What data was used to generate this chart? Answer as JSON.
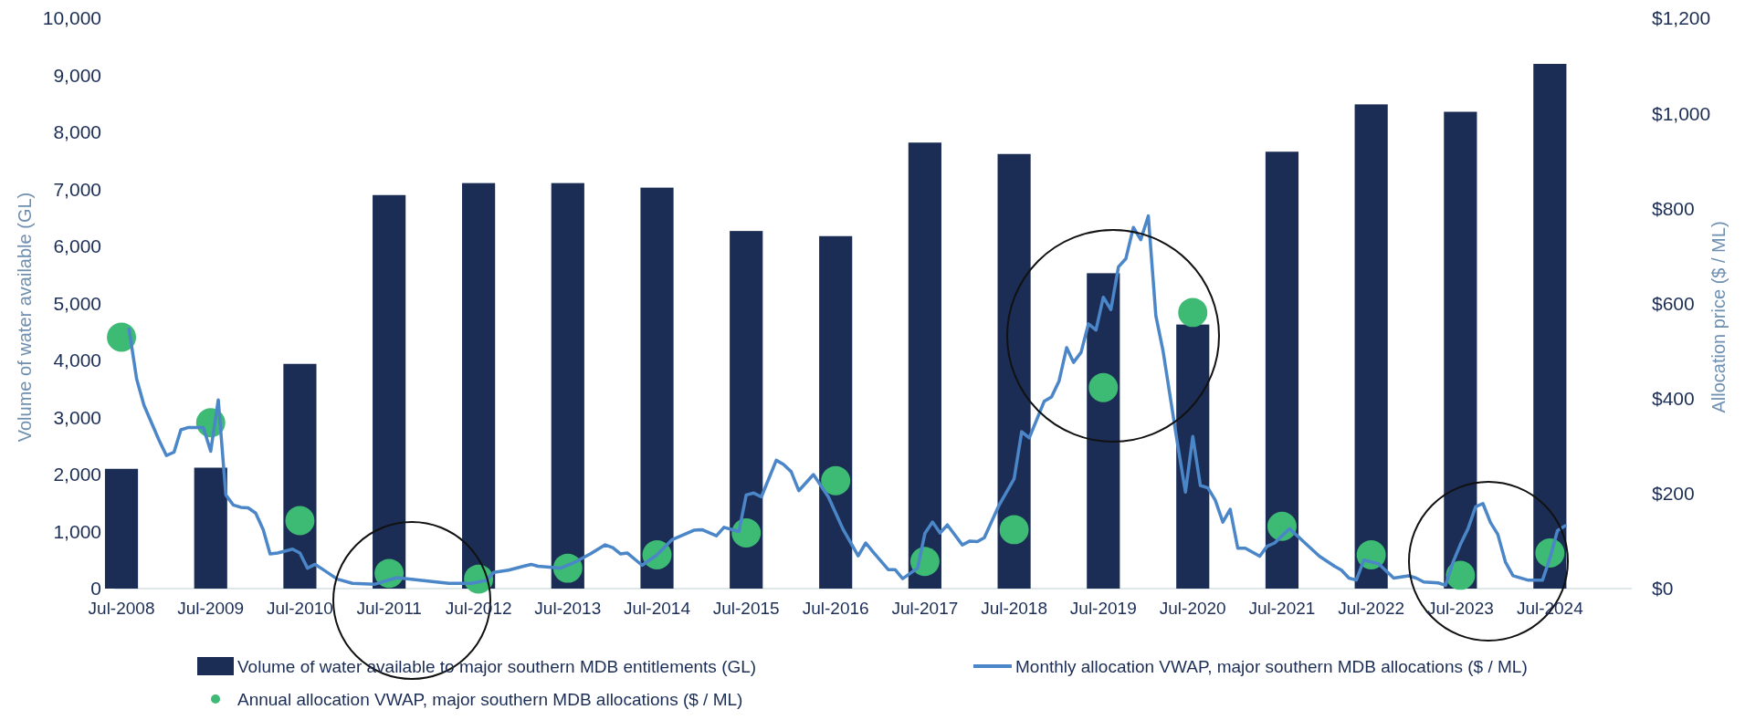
{
  "chart_data": {
    "type": "bar",
    "ylabel": "Volume of water available (GL)",
    "y2label": "Allocation price ($ / ML)",
    "xlim": [
      "2008-06",
      "2025-06"
    ],
    "xticks": [
      {
        "value": "2008-07",
        "label": "Jul-2008"
      },
      {
        "value": "2009-07",
        "label": "Jul-2009"
      },
      {
        "value": "2010-07",
        "label": "Jul-2010"
      },
      {
        "value": "2011-07",
        "label": "Jul-2011"
      },
      {
        "value": "2012-07",
        "label": "Jul-2012"
      },
      {
        "value": "2013-07",
        "label": "Jul-2013"
      },
      {
        "value": "2014-07",
        "label": "Jul-2014"
      },
      {
        "value": "2015-07",
        "label": "Jul-2015"
      },
      {
        "value": "2016-07",
        "label": "Jul-2016"
      },
      {
        "value": "2017-07",
        "label": "Jul-2017"
      },
      {
        "value": "2018-07",
        "label": "Jul-2018"
      },
      {
        "value": "2019-07",
        "label": "Jul-2019"
      },
      {
        "value": "2020-07",
        "label": "Jul-2020"
      },
      {
        "value": "2021-07",
        "label": "Jul-2021"
      },
      {
        "value": "2022-07",
        "label": "Jul-2022"
      },
      {
        "value": "2023-07",
        "label": "Jul-2023"
      },
      {
        "value": "2024-07",
        "label": "Jul-2024"
      }
    ],
    "ylim": [
      0,
      10000
    ],
    "yticks": [
      {
        "value": 0,
        "label": "0"
      },
      {
        "value": 1000,
        "label": "1,000"
      },
      {
        "value": 2000,
        "label": "2,000"
      },
      {
        "value": 3000,
        "label": "3,000"
      },
      {
        "value": 4000,
        "label": "4,000"
      },
      {
        "value": 5000,
        "label": "5,000"
      },
      {
        "value": 6000,
        "label": "6,000"
      },
      {
        "value": 7000,
        "label": "7,000"
      },
      {
        "value": 8000,
        "label": "8,000"
      },
      {
        "value": 9000,
        "label": "9,000"
      },
      {
        "value": 10000,
        "label": "10,000"
      }
    ],
    "y2lim": [
      0,
      1200
    ],
    "y2ticks": [
      {
        "value": 0,
        "label": "$0"
      },
      {
        "value": 200,
        "label": "$200"
      },
      {
        "value": 400,
        "label": "$400"
      },
      {
        "value": 600,
        "label": "$600"
      },
      {
        "value": 800,
        "label": "$800"
      },
      {
        "value": 1000,
        "label": "$1,000"
      },
      {
        "value": 1200,
        "label": "$1,200"
      }
    ],
    "legend": "bottom",
    "series": [
      {
        "name": "Volume of water available to major southern MDB entitlements (GL)",
        "color": "#1b2d55",
        "x": [
          "2008-07",
          "2009-07",
          "2010-07",
          "2011-07",
          "2012-07",
          "2013-07",
          "2014-07",
          "2015-07",
          "2016-07",
          "2017-07",
          "2018-07",
          "2019-07",
          "2020-07",
          "2021-07",
          "2022-07",
          "2023-07",
          "2024-07"
        ],
        "values": [
          2100,
          2120,
          3940,
          6900,
          7110,
          7110,
          7030,
          6270,
          6180,
          7820,
          7620,
          5530,
          4630,
          7660,
          8490,
          8360,
          9200
        ]
      },
      {
        "name": "Monthly allocation VWAP, major southern MDB allocations ($ / ML)",
        "type": "line",
        "axis": "y2",
        "color": "#4a86c8",
        "x": [
          "2008-08",
          "2008-09",
          "2008-10",
          "2008-12",
          "2009-01",
          "2009-02",
          "2009-03",
          "2009-04",
          "2009-06",
          "2009-07",
          "2009-08",
          "2009-09",
          "2009-10",
          "2009-11",
          "2009-12",
          "2010-01",
          "2010-02",
          "2010-03",
          "2010-04",
          "2010-06",
          "2010-07",
          "2010-08",
          "2010-09",
          "2010-10",
          "2010-12",
          "2011-02",
          "2011-05",
          "2011-08",
          "2012-03",
          "2012-06",
          "2012-08",
          "2012-09",
          "2012-11",
          "2013-01",
          "2013-02",
          "2013-03",
          "2013-06",
          "2013-08",
          "2013-10",
          "2013-12",
          "2014-01",
          "2014-02",
          "2014-03",
          "2014-05",
          "2014-07",
          "2014-09",
          "2014-12",
          "2015-01",
          "2015-03",
          "2015-04",
          "2015-06",
          "2015-07",
          "2015-08",
          "2015-09",
          "2015-11",
          "2015-12",
          "2016-01",
          "2016-02",
          "2016-04",
          "2016-06",
          "2016-08",
          "2016-10",
          "2016-11",
          "2016-12",
          "2017-02",
          "2017-03",
          "2017-04",
          "2017-06",
          "2017-07",
          "2017-08",
          "2017-09",
          "2017-10",
          "2017-12",
          "2018-01",
          "2018-02",
          "2018-03",
          "2018-05",
          "2018-07",
          "2018-08",
          "2018-09",
          "2018-11",
          "2018-12",
          "2019-01",
          "2019-02",
          "2019-03",
          "2019-04",
          "2019-05",
          "2019-06",
          "2019-07",
          "2019-08",
          "2019-09",
          "2019-10",
          "2019-11",
          "2019-12",
          "2020-01",
          "2020-02",
          "2020-03",
          "2020-05",
          "2020-06",
          "2020-07",
          "2020-08",
          "2020-09",
          "2020-10",
          "2020-11",
          "2020-12",
          "2021-01",
          "2021-02",
          "2021-04",
          "2021-05",
          "2021-06",
          "2021-08",
          "2021-10",
          "2021-12",
          "2022-02",
          "2022-03",
          "2022-04",
          "2022-05",
          "2022-06",
          "2022-08",
          "2022-10",
          "2022-12",
          "2023-01",
          "2023-02",
          "2023-04",
          "2023-05",
          "2023-06",
          "2023-07",
          "2023-08",
          "2023-09",
          "2023-10",
          "2023-11",
          "2023-12",
          "2024-01",
          "2024-02",
          "2024-04",
          "2024-06",
          "2024-07",
          "2024-08",
          "2024-09"
        ],
        "values": [
          546,
          441,
          386,
          313,
          280,
          287,
          334,
          339,
          339,
          289,
          397,
          197,
          176,
          171,
          170,
          159,
          124,
          73,
          75,
          83,
          75,
          43,
          51,
          41,
          20,
          11,
          9,
          23,
          11,
          11,
          17,
          34,
          39,
          47,
          51,
          47,
          43,
          56,
          73,
          92,
          86,
          73,
          75,
          49,
          71,
          103,
          123,
          124,
          111,
          129,
          120,
          197,
          201,
          193,
          270,
          261,
          246,
          206,
          240,
          193,
          124,
          69,
          96,
          77,
          40,
          40,
          21,
          43,
          116,
          140,
          117,
          134,
          92,
          100,
          99,
          107,
          176,
          231,
          330,
          317,
          394,
          403,
          437,
          507,
          476,
          497,
          557,
          544,
          613,
          587,
          677,
          694,
          760,
          734,
          784,
          574,
          501,
          300,
          203,
          320,
          217,
          212,
          186,
          140,
          167,
          85,
          85,
          68,
          89,
          96,
          126,
          97,
          68,
          47,
          39,
          22,
          18,
          60,
          52,
          22,
          27,
          22,
          14,
          12,
          7,
          56,
          93,
          126,
          172,
          179,
          139,
          114,
          56,
          27,
          18,
          18,
          64,
          122,
          132
        ]
      },
      {
        "name": "Annual allocation VWAP, major southern MDB allocations ($ / ML)",
        "type": "scatter",
        "axis": "y2",
        "marker": "circle",
        "color": "#3dba73",
        "x": [
          "2008-07",
          "2009-07",
          "2010-07",
          "2011-07",
          "2012-07",
          "2013-07",
          "2014-07",
          "2015-07",
          "2016-07",
          "2017-07",
          "2018-07",
          "2019-07",
          "2020-07",
          "2021-07",
          "2022-07",
          "2023-07",
          "2024-07"
        ],
        "values": [
          529,
          349,
          143,
          32,
          20,
          43,
          71,
          117,
          227,
          57,
          124,
          423,
          581,
          131,
          71,
          28,
          75
        ]
      }
    ]
  }
}
